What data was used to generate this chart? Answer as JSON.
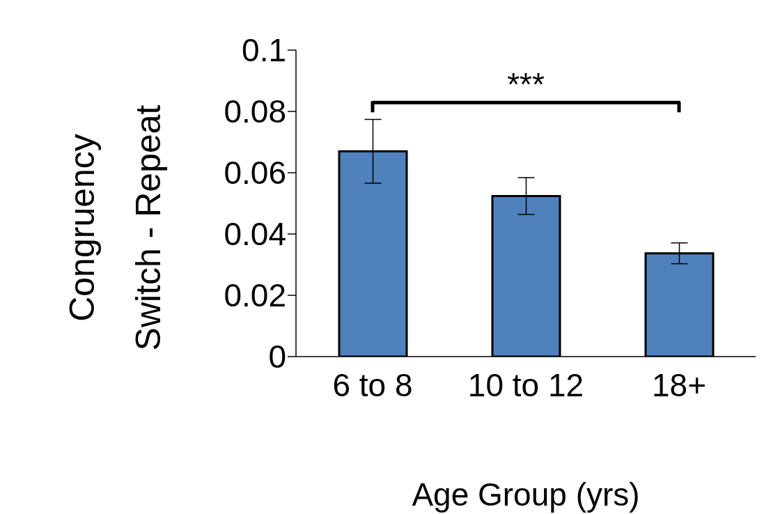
{
  "chart_data": {
    "type": "bar",
    "ylabel": "Congruency\nSwitch - Repeat",
    "xlabel": "Age Group (yrs)",
    "categories": [
      "6 to 8",
      "10 to 12",
      "18+"
    ],
    "values": [
      0.067,
      0.0524,
      0.0337
    ],
    "errors": [
      0.0104,
      0.006,
      0.0034
    ],
    "color": "#4f81bd",
    "ylim": [
      0,
      0.1
    ],
    "yticks": [
      0,
      0.02,
      0.04,
      0.06,
      0.08,
      0.1
    ],
    "annotations": [
      "***"
    ]
  }
}
